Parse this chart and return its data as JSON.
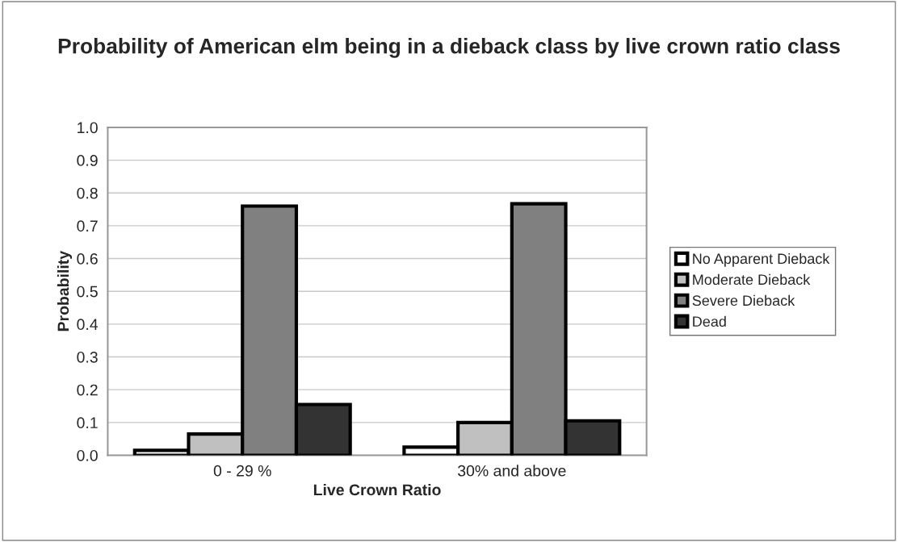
{
  "chart_data": {
    "type": "bar",
    "title": "Probability of American elm being in a dieback class by live crown ratio class",
    "xlabel": "Live Crown Ratio",
    "ylabel": "Probability",
    "categories": [
      "0 - 29 %",
      "30% and above"
    ],
    "series": [
      {
        "name": "No Apparent Dieback",
        "color": "#ffffff",
        "values": [
          0.015,
          0.025
        ]
      },
      {
        "name": "Moderate Dieback",
        "color": "#c0c0c0",
        "values": [
          0.065,
          0.1
        ]
      },
      {
        "name": "Severe Dieback",
        "color": "#808080",
        "values": [
          0.76,
          0.767
        ]
      },
      {
        "name": "Dead",
        "color": "#333333",
        "values": [
          0.155,
          0.105
        ]
      }
    ],
    "ylim": [
      0,
      1
    ],
    "yticks": [
      {
        "value": 0,
        "label": "0.0"
      },
      {
        "value": 0.1,
        "label": "0.1"
      },
      {
        "value": 0.2,
        "label": "0.2"
      },
      {
        "value": 0.3,
        "label": "0.3"
      },
      {
        "value": 0.4,
        "label": "0.4"
      },
      {
        "value": 0.5,
        "label": "0.5"
      },
      {
        "value": 0.6,
        "label": "0.6"
      },
      {
        "value": 0.7,
        "label": "0.7"
      },
      {
        "value": 0.8,
        "label": "0.8"
      },
      {
        "value": 0.9,
        "label": "0.9"
      },
      {
        "value": 1,
        "label": "1.0"
      }
    ],
    "grid": "y",
    "legend": "right"
  }
}
